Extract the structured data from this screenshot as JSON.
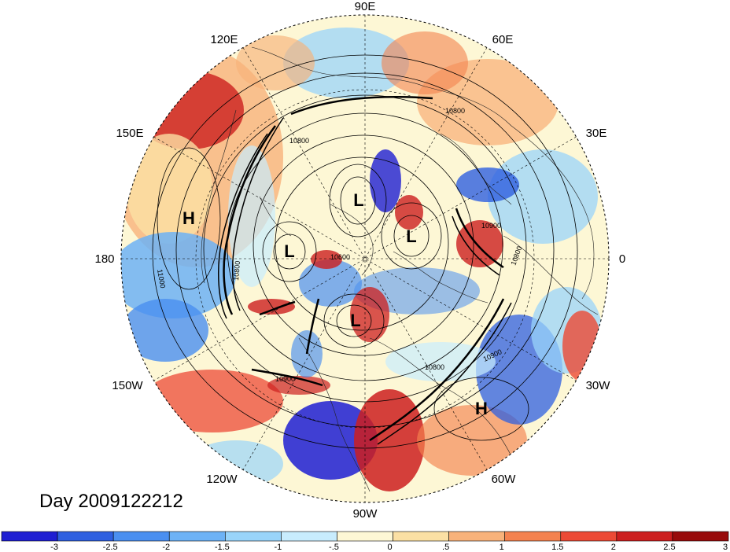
{
  "map": {
    "projection": "north-polar-stereographic",
    "center_lat": 90,
    "longitude_labels": [
      {
        "text": "90E",
        "lon": 90
      },
      {
        "text": "60E",
        "lon": 60
      },
      {
        "text": "30E",
        "lon": 30
      },
      {
        "text": "0",
        "lon": 0
      },
      {
        "text": "30W",
        "lon": -30
      },
      {
        "text": "60W",
        "lon": -60
      },
      {
        "text": "90W",
        "lon": -90
      },
      {
        "text": "120W",
        "lon": -120
      },
      {
        "text": "150W",
        "lon": -150
      },
      {
        "text": "180",
        "lon": 180
      },
      {
        "text": "150E",
        "lon": 150
      },
      {
        "text": "120E",
        "lon": 120
      }
    ],
    "pressure_systems": [
      {
        "type": "H",
        "lon": 170,
        "lat": 35
      },
      {
        "type": "H",
        "lon": -45,
        "lat": 27
      },
      {
        "type": "L",
        "lon": 95,
        "lat": 65
      },
      {
        "type": "L",
        "lon": 30,
        "lat": 68
      },
      {
        "type": "L",
        "lon": 160,
        "lat": 63
      },
      {
        "type": "L",
        "lon": -105,
        "lat": 75
      }
    ],
    "contour_labels": [
      "10800",
      "10800",
      "10800",
      "11000",
      "10900",
      "10900",
      "10900",
      "10800",
      "10800",
      "10600"
    ],
    "date_label": "Day 2009122212"
  },
  "colorbar": {
    "colors": [
      "#1e1ed2",
      "#2e5fe0",
      "#4a8ff0",
      "#6db2f5",
      "#99d4fa",
      "#c8ecfd",
      "#fdf7d5",
      "#fbe0a4",
      "#f8b27a",
      "#f4824f",
      "#ec4a35",
      "#cc1e1e",
      "#980b0b"
    ],
    "tick_labels": [
      "-3",
      "-2.5",
      "-2",
      "-1.5",
      "-1",
      "-.5",
      "0",
      ".5",
      "1",
      "1.5",
      "2",
      "2.5",
      "3"
    ]
  }
}
